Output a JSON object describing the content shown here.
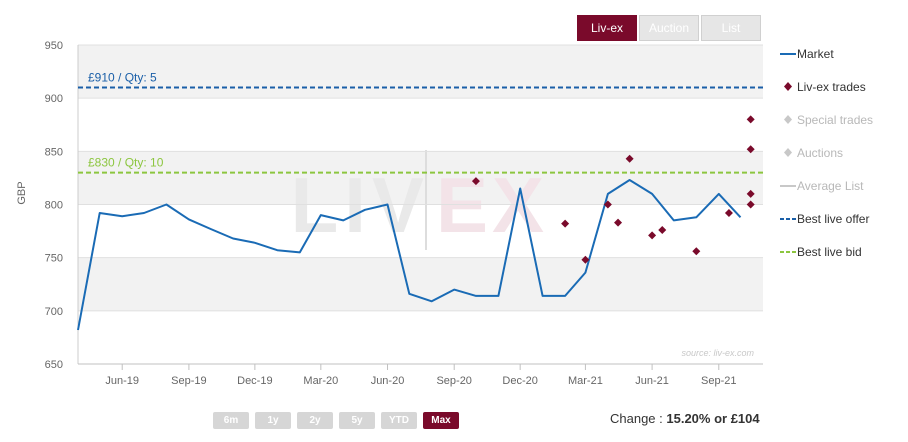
{
  "tabs": [
    {
      "label": "Liv-ex",
      "active": true
    },
    {
      "label": "Auction",
      "active": false
    },
    {
      "label": "List",
      "active": false
    }
  ],
  "legend": [
    {
      "label": "Market",
      "symbol": "line",
      "color": "#1a6bb5",
      "enabled": true
    },
    {
      "label": "Liv-ex trades",
      "symbol": "diamond",
      "color": "#7a0a2b",
      "enabled": true
    },
    {
      "label": "Special trades",
      "symbol": "diamond",
      "color": "#c8c8c8",
      "enabled": false
    },
    {
      "label": "Auctions",
      "symbol": "diamond",
      "color": "#c8c8c8",
      "enabled": false
    },
    {
      "label": "Average List",
      "symbol": "line",
      "color": "#c8c8c8",
      "enabled": false
    },
    {
      "label": "Best live offer",
      "symbol": "dash",
      "color": "#1a5fa8",
      "enabled": true
    },
    {
      "label": "Best live bid",
      "symbol": "dash",
      "color": "#8cc63f",
      "enabled": true
    }
  ],
  "range_buttons": [
    {
      "label": "6m",
      "active": false
    },
    {
      "label": "1y",
      "active": false
    },
    {
      "label": "2y",
      "active": false
    },
    {
      "label": "5y",
      "active": false
    },
    {
      "label": "YTD",
      "active": false
    },
    {
      "label": "Max",
      "active": true
    }
  ],
  "change": {
    "prefix": "Change : ",
    "value": "15.20% or £104"
  },
  "watermark_source": "source: liv-ex.com",
  "watermark_logo": "LIV-EX",
  "chart_data": {
    "type": "line",
    "ylabel": "GBP",
    "xlabel": "",
    "ylim": [
      650,
      950
    ],
    "yticks": [
      650,
      700,
      750,
      800,
      850,
      900,
      950
    ],
    "xlim": [
      "2019-04-01",
      "2021-11-01"
    ],
    "xticks": [
      {
        "label": "Jun-19",
        "date": "2019-06-01"
      },
      {
        "label": "Sep-19",
        "date": "2019-09-01"
      },
      {
        "label": "Dec-19",
        "date": "2019-12-01"
      },
      {
        "label": "Mar-20",
        "date": "2020-03-01"
      },
      {
        "label": "Jun-20",
        "date": "2020-06-01"
      },
      {
        "label": "Sep-20",
        "date": "2020-09-01"
      },
      {
        "label": "Dec-20",
        "date": "2020-12-01"
      },
      {
        "label": "Mar-21",
        "date": "2021-03-01"
      },
      {
        "label": "Jun-21",
        "date": "2021-06-01"
      },
      {
        "label": "Sep-21",
        "date": "2021-09-01"
      }
    ],
    "grid": true,
    "legend_position": "right",
    "series": [
      {
        "name": "Market",
        "color": "#1a6bb5",
        "points": [
          [
            "2019-04-01",
            682
          ],
          [
            "2019-05-01",
            792
          ],
          [
            "2019-06-01",
            789
          ],
          [
            "2019-07-01",
            792
          ],
          [
            "2019-08-01",
            800
          ],
          [
            "2019-09-01",
            786
          ],
          [
            "2019-10-01",
            777
          ],
          [
            "2019-11-01",
            768
          ],
          [
            "2019-12-01",
            764
          ],
          [
            "2020-01-01",
            757
          ],
          [
            "2020-02-01",
            755
          ],
          [
            "2020-03-01",
            790
          ],
          [
            "2020-04-01",
            785
          ],
          [
            "2020-05-01",
            795
          ],
          [
            "2020-06-01",
            800
          ],
          [
            "2020-07-01",
            716
          ],
          [
            "2020-08-01",
            709
          ],
          [
            "2020-09-01",
            720
          ],
          [
            "2020-10-01",
            714
          ],
          [
            "2020-11-01",
            714
          ],
          [
            "2020-12-01",
            815
          ],
          [
            "2021-01-01",
            714
          ],
          [
            "2021-02-01",
            714
          ],
          [
            "2021-03-01",
            736
          ],
          [
            "2021-04-01",
            810
          ],
          [
            "2021-05-01",
            823
          ],
          [
            "2021-06-01",
            810
          ],
          [
            "2021-07-01",
            785
          ],
          [
            "2021-08-01",
            788
          ],
          [
            "2021-09-01",
            810
          ],
          [
            "2021-10-01",
            788
          ]
        ]
      }
    ],
    "trades": {
      "name": "Liv-ex trades",
      "color": "#7a0a2b",
      "points": [
        [
          "2020-10-01",
          822
        ],
        [
          "2021-02-01",
          782
        ],
        [
          "2021-03-01",
          748
        ],
        [
          "2021-04-01",
          800
        ],
        [
          "2021-04-15",
          783
        ],
        [
          "2021-05-01",
          843
        ],
        [
          "2021-06-01",
          771
        ],
        [
          "2021-06-15",
          776
        ],
        [
          "2021-08-01",
          756
        ],
        [
          "2021-09-15",
          792
        ],
        [
          "2021-10-15",
          880
        ],
        [
          "2021-10-15",
          852
        ],
        [
          "2021-10-15",
          810
        ],
        [
          "2021-10-15",
          800
        ]
      ]
    },
    "reference_lines": [
      {
        "name": "Best live offer",
        "value": 910,
        "label": "£910 / Qty: 5",
        "color": "#1a5fa8"
      },
      {
        "name": "Best live bid",
        "value": 830,
        "label": "£830 / Qty: 10",
        "color": "#8cc63f"
      }
    ]
  }
}
